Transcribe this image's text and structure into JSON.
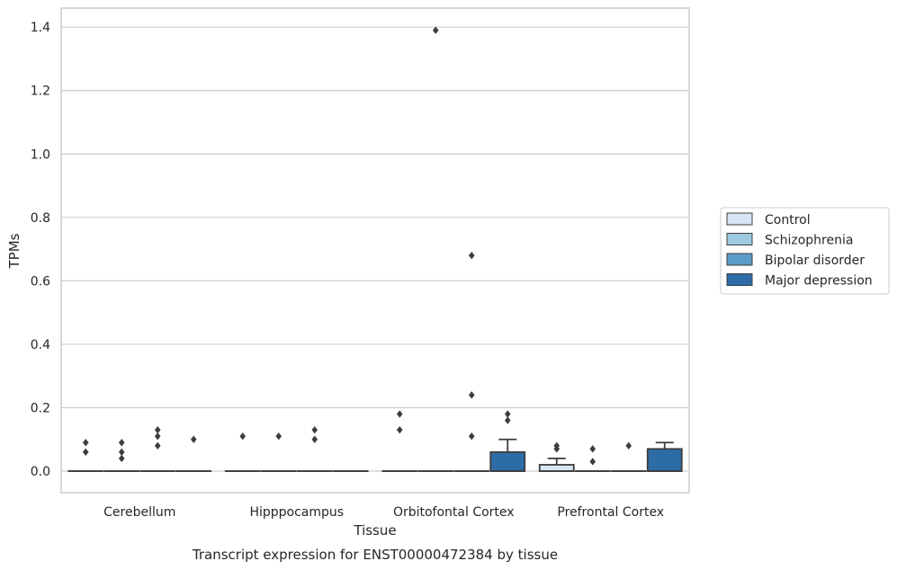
{
  "chart_data": {
    "type": "box",
    "xlabel": "Tissue",
    "ylabel": "TPMs",
    "caption": "Transcript expression for ENST00000472384 by tissue",
    "ylim": [
      -0.068,
      1.46
    ],
    "yticks": [
      0.0,
      0.2,
      0.4,
      0.6,
      0.8,
      1.0,
      1.2,
      1.4
    ],
    "ytick_labels": [
      "0.0",
      "0.2",
      "0.4",
      "0.6",
      "0.8",
      "1.0",
      "1.2",
      "1.4"
    ],
    "grid": true,
    "legend_position": "right",
    "categories": [
      "Cerebellum",
      "Hipppocampus",
      "Orbitofontal Cortex",
      "Prefrontal Cortex"
    ],
    "series": [
      {
        "name": "Control",
        "color": "#d6e6f4",
        "boxes": [
          {
            "q1": 0,
            "median": 0,
            "q3": 0,
            "whisker_low": 0,
            "whisker_high": 0,
            "outliers": [
              0.06,
              0.09
            ]
          },
          {
            "q1": 0,
            "median": 0,
            "q3": 0,
            "whisker_low": 0,
            "whisker_high": 0,
            "outliers": [
              0.11
            ]
          },
          {
            "q1": 0,
            "median": 0,
            "q3": 0,
            "whisker_low": 0,
            "whisker_high": 0,
            "outliers": [
              0.13,
              0.18
            ]
          },
          {
            "q1": 0,
            "median": 0,
            "q3": 0.02,
            "whisker_low": 0,
            "whisker_high": 0.04,
            "outliers": [
              0.07,
              0.08
            ]
          }
        ]
      },
      {
        "name": "Schizophrenia",
        "color": "#9ecae1",
        "boxes": [
          {
            "q1": 0,
            "median": 0,
            "q3": 0,
            "whisker_low": 0,
            "whisker_high": 0,
            "outliers": [
              0.04,
              0.06,
              0.09
            ]
          },
          {
            "q1": 0,
            "median": 0,
            "q3": 0,
            "whisker_low": 0,
            "whisker_high": 0,
            "outliers": [
              0.11
            ]
          },
          {
            "q1": 0,
            "median": 0,
            "q3": 0,
            "whisker_low": 0,
            "whisker_high": 0,
            "outliers": [
              1.39
            ]
          },
          {
            "q1": 0,
            "median": 0,
            "q3": 0,
            "whisker_low": 0,
            "whisker_high": 0,
            "outliers": [
              0.03,
              0.07
            ]
          }
        ]
      },
      {
        "name": "Bipolar disorder",
        "color": "#5b9bc8",
        "boxes": [
          {
            "q1": 0,
            "median": 0,
            "q3": 0,
            "whisker_low": 0,
            "whisker_high": 0,
            "outliers": [
              0.08,
              0.11,
              0.13
            ]
          },
          {
            "q1": 0,
            "median": 0,
            "q3": 0,
            "whisker_low": 0,
            "whisker_high": 0,
            "outliers": [
              0.1,
              0.13
            ]
          },
          {
            "q1": 0,
            "median": 0,
            "q3": 0,
            "whisker_low": 0,
            "whisker_high": 0,
            "outliers": [
              0.11,
              0.24,
              0.68
            ]
          },
          {
            "q1": 0,
            "median": 0,
            "q3": 0,
            "whisker_low": 0,
            "whisker_high": 0,
            "outliers": [
              0.08
            ]
          }
        ]
      },
      {
        "name": "Major depression",
        "color": "#2d6ca7",
        "boxes": [
          {
            "q1": 0,
            "median": 0,
            "q3": 0,
            "whisker_low": 0,
            "whisker_high": 0,
            "outliers": [
              0.1
            ]
          },
          {
            "q1": 0,
            "median": 0,
            "q3": 0,
            "whisker_low": 0,
            "whisker_high": 0,
            "outliers": []
          },
          {
            "q1": 0,
            "median": 0,
            "q3": 0.06,
            "whisker_low": 0,
            "whisker_high": 0.1,
            "outliers": [
              0.16,
              0.18
            ]
          },
          {
            "q1": 0,
            "median": 0,
            "q3": 0.07,
            "whisker_low": 0,
            "whisker_high": 0.09,
            "outliers": []
          }
        ]
      }
    ]
  }
}
